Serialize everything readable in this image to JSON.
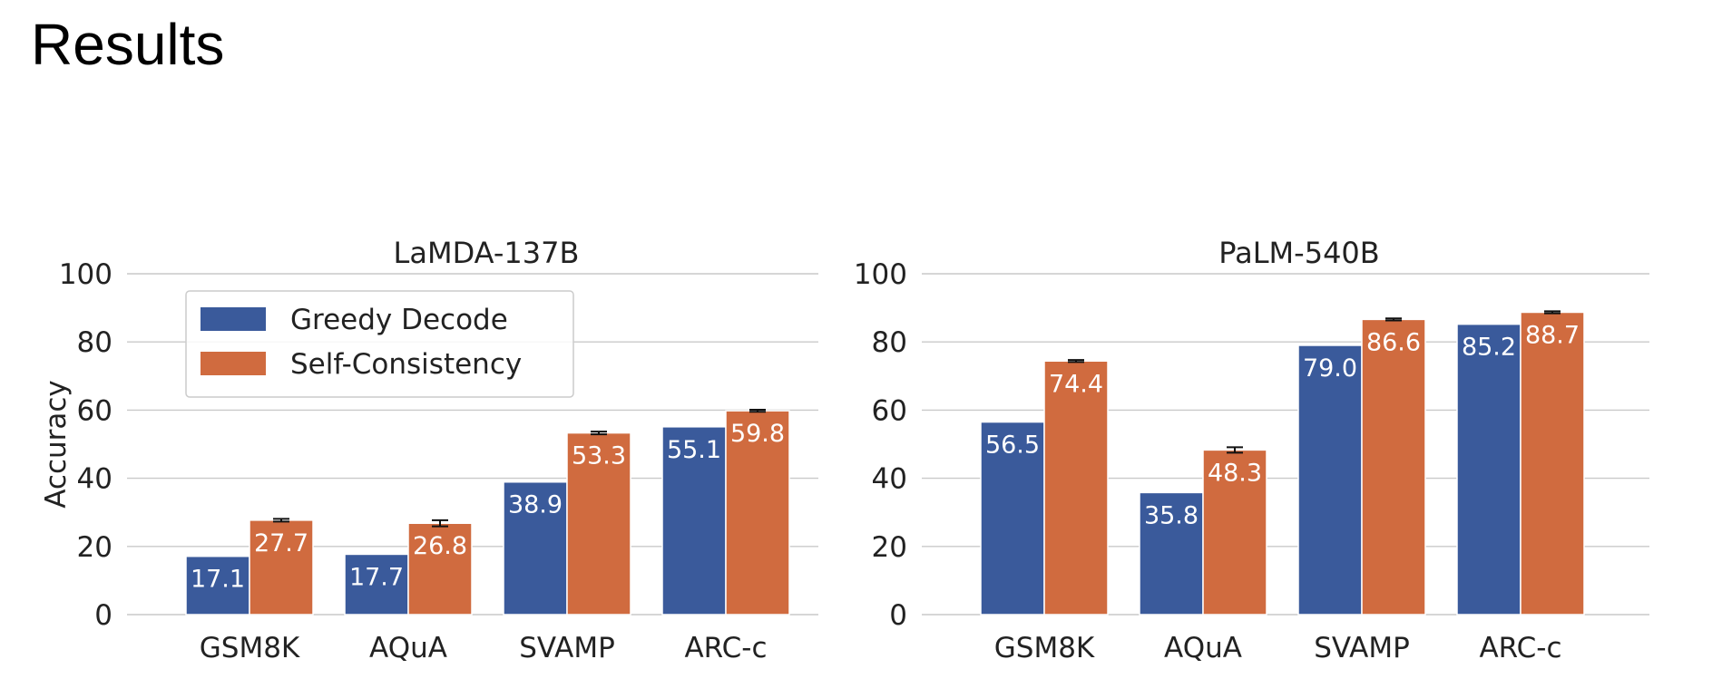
{
  "page": {
    "title": "Results"
  },
  "legend": {
    "items": [
      {
        "label": "Greedy Decode",
        "color": "#3a5a9b"
      },
      {
        "label": "Self-Consistency",
        "color": "#d06b3f"
      }
    ]
  },
  "chart_data": [
    {
      "type": "bar",
      "title": "LaMDA-137B",
      "ylabel": "Accuracy",
      "xlabel": "",
      "ylim": [
        0,
        100
      ],
      "yticks": [
        0,
        20,
        40,
        60,
        80,
        100
      ],
      "grid": true,
      "legend_position": "top-left",
      "categories": [
        "GSM8K",
        "AQuA",
        "SVAMP",
        "ARC-c"
      ],
      "series": [
        {
          "name": "Greedy Decode",
          "values": [
            17.1,
            17.7,
            38.9,
            55.1
          ],
          "value_labels": [
            "17.1",
            "17.7",
            "38.9",
            "55.1"
          ],
          "color": "#3a5a9b"
        },
        {
          "name": "Self-Consistency",
          "values": [
            27.7,
            26.8,
            53.3,
            59.8
          ],
          "value_labels": [
            "27.7",
            "26.8",
            "53.3",
            "59.8"
          ],
          "color": "#d06b3f",
          "error_bars": [
            0.4,
            0.9,
            0.4,
            0.3
          ]
        }
      ]
    },
    {
      "type": "bar",
      "title": "PaLM-540B",
      "ylabel": "",
      "xlabel": "",
      "ylim": [
        0,
        100
      ],
      "yticks": [
        0,
        20,
        40,
        60,
        80,
        100
      ],
      "grid": true,
      "categories": [
        "GSM8K",
        "AQuA",
        "SVAMP",
        "ARC-c"
      ],
      "series": [
        {
          "name": "Greedy Decode",
          "values": [
            56.5,
            35.8,
            79.0,
            85.2
          ],
          "value_labels": [
            "56.5",
            "35.8",
            "79.0",
            "85.2"
          ],
          "color": "#3a5a9b"
        },
        {
          "name": "Self-Consistency",
          "values": [
            74.4,
            48.3,
            86.6,
            88.7
          ],
          "value_labels": [
            "74.4",
            "48.3",
            "86.6",
            "88.7"
          ],
          "color": "#d06b3f",
          "error_bars": [
            0.3,
            0.8,
            0.3,
            0.3
          ]
        }
      ]
    }
  ]
}
